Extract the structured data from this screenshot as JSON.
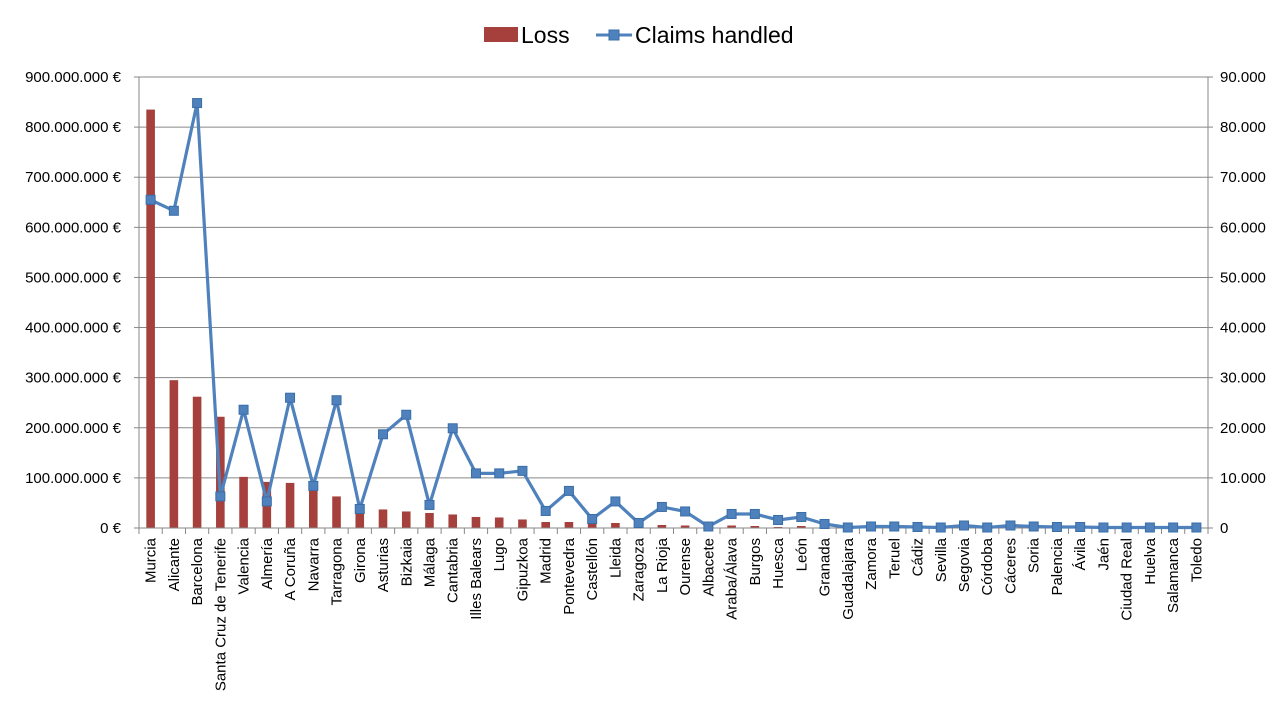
{
  "chart_data": {
    "type": "bar",
    "categories": [
      "Murcia",
      "Alicante",
      "Barcelona",
      "Santa Cruz de Tenerife",
      "Valencia",
      "Almería",
      "A Coruña",
      "Navarra",
      "Tarragona",
      "Girona",
      "Asturias",
      "Bizkaia",
      "Málaga",
      "Cantabria",
      "Illes Balears",
      "Lugo",
      "Gipuzkoa",
      "Madrid",
      "Pontevedra",
      "Castellón",
      "Lleida",
      "Zaragoza",
      "La Rioja",
      "Ourense",
      "Albacete",
      "Araba/Álava",
      "Burgos",
      "Huesca",
      "León",
      "Granada",
      "Guadalajara",
      "Zamora",
      "Teruel",
      "Cádiz",
      "Sevilla",
      "Segovia",
      "Córdoba",
      "Cáceres",
      "Soria",
      "Palencia",
      "Ávila",
      "Jaén",
      "Ciudad Real",
      "Huelva",
      "Salamanca",
      "Toledo"
    ],
    "series": [
      {
        "name": "Loss",
        "type": "bar",
        "axis": "left",
        "color": "#A5403D",
        "values": [
          835000000,
          295000000,
          262000000,
          222000000,
          102000000,
          92000000,
          90000000,
          88000000,
          63000000,
          37000000,
          37000000,
          33000000,
          30000000,
          27000000,
          22000000,
          21000000,
          17000000,
          12000000,
          12000000,
          11000000,
          10000000,
          4000000,
          6000000,
          5000000,
          2000000,
          5000000,
          4000000,
          2000000,
          4000000,
          2000000,
          1000000,
          1000000,
          1000000,
          1000000,
          500000,
          500000,
          500000,
          1000000,
          500000,
          500000,
          500000,
          500000,
          500000,
          500000,
          500000,
          500000
        ]
      },
      {
        "name": "Claims handled",
        "type": "line",
        "axis": "right",
        "color": "#4F81BD",
        "marker": "square",
        "values": [
          65500,
          63300,
          84800,
          6300,
          23600,
          5300,
          26000,
          8400,
          25500,
          3800,
          18700,
          22600,
          4600,
          19900,
          10900,
          10900,
          11400,
          3400,
          7400,
          1800,
          5300,
          1000,
          4200,
          3300,
          300,
          2800,
          2800,
          1600,
          2200,
          800,
          100,
          300,
          300,
          200,
          100,
          500,
          100,
          500,
          300,
          200,
          200,
          100,
          100,
          100,
          100,
          100
        ]
      }
    ],
    "title": "",
    "xlabel": "",
    "ylabel": "",
    "ylim": [
      0,
      900000000
    ],
    "y2lim": [
      0,
      90000
    ],
    "y_ticks": [
      "0 €",
      "100.000.000 €",
      "200.000.000 €",
      "300.000.000 €",
      "400.000.000 €",
      "500.000.000 €",
      "600.000.000 €",
      "700.000.000 €",
      "800.000.000 €",
      "900.000.000 €"
    ],
    "y2_ticks": [
      "0",
      "10.000",
      "20.000",
      "30.000",
      "40.000",
      "50.000",
      "60.000",
      "70.000",
      "80.000",
      "90.000"
    ],
    "legend": {
      "position": "top",
      "items": [
        "Loss",
        "Claims handled"
      ]
    },
    "grid": true,
    "colors": {
      "grid": "#878787",
      "axis": "#878787"
    }
  }
}
